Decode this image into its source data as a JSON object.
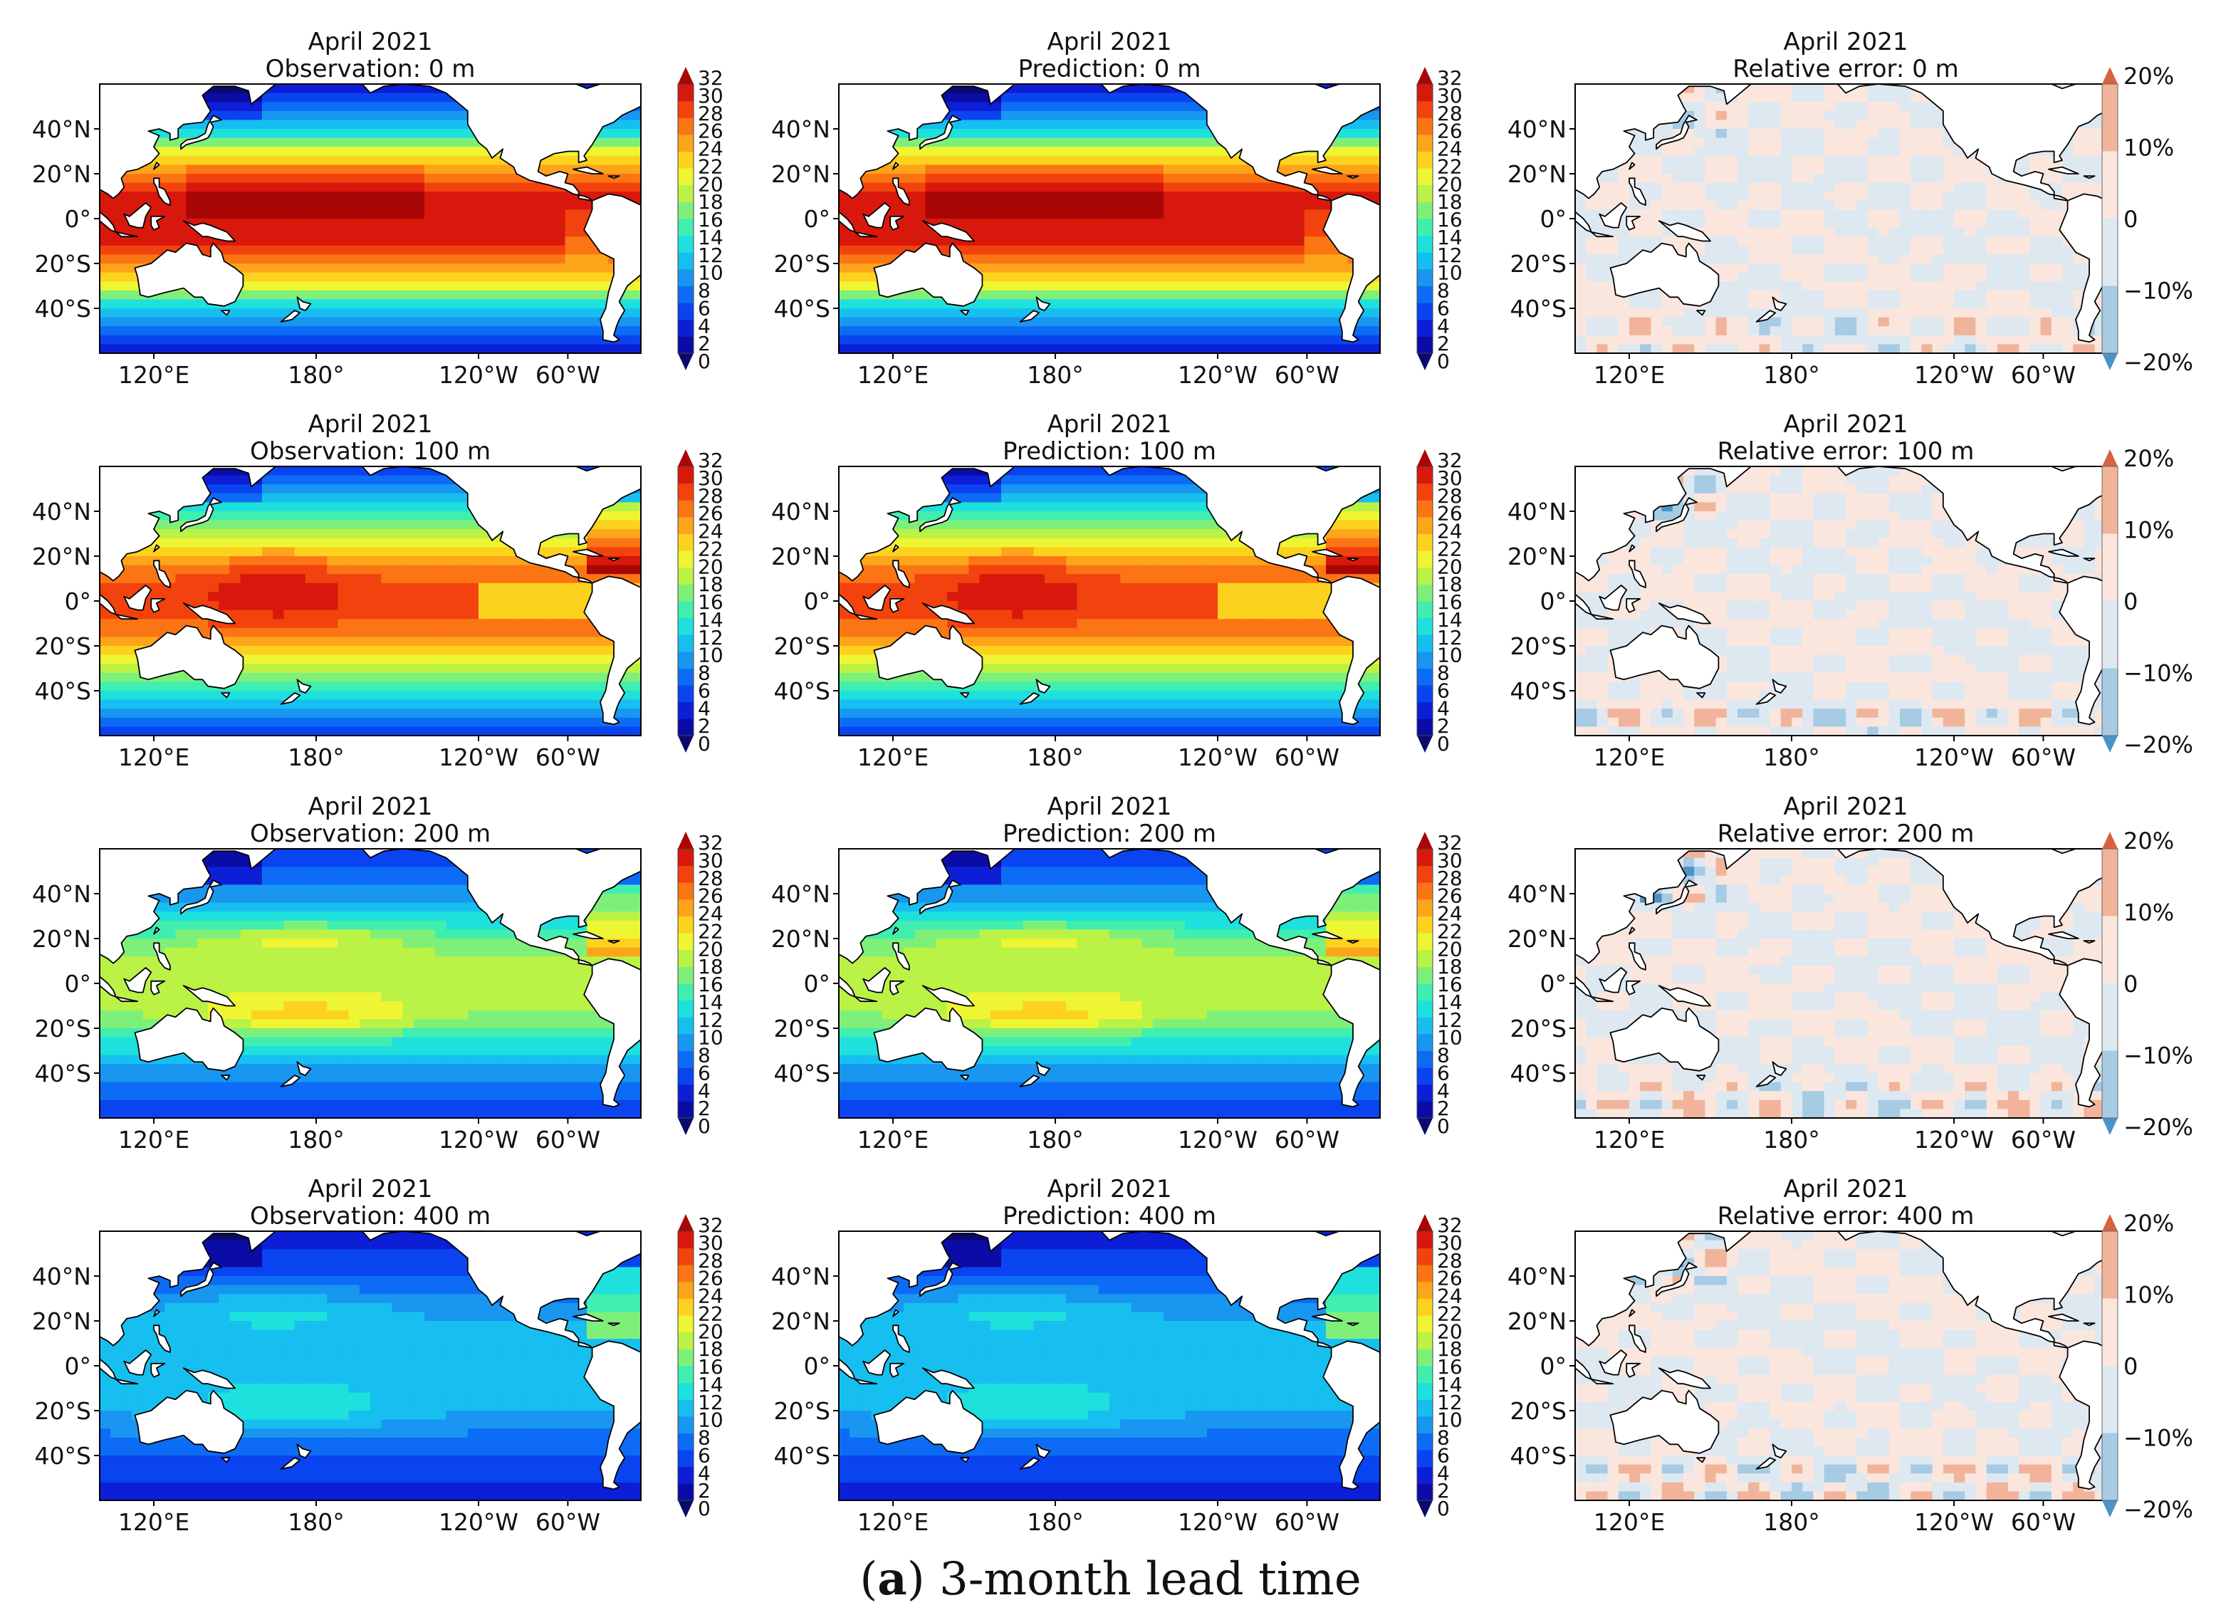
{
  "figure": {
    "caption_label": "a",
    "caption_text": "3-month lead time",
    "colors": {
      "temperature": [
        "#0a0a6e",
        "#0b0ba5",
        "#0c1fd6",
        "#0a44f0",
        "#0d6cf5",
        "#1896f0",
        "#16bff0",
        "#1ee0dd",
        "#40eeaf",
        "#7ef07a",
        "#baf246",
        "#eef532",
        "#fdd21e",
        "#fca51a",
        "#fc7514",
        "#f2420e",
        "#d8180c",
        "#a90606"
      ],
      "relative_error": [
        "#4a93c7",
        "#a6cbe3",
        "#dde8f1",
        "#fbe6de",
        "#f1b49a",
        "#d8613e"
      ],
      "land": "#ffffff",
      "coastline": "#000000"
    },
    "x_ticks": [
      "120°E",
      "180°",
      "120°W",
      "60°W"
    ],
    "y_ticks": [
      "40°N",
      "20°N",
      "0°",
      "20°S",
      "40°S"
    ],
    "temperature_colorbar_ticks": [
      "32",
      "30",
      "28",
      "26",
      "24",
      "22",
      "20",
      "18",
      "16",
      "14",
      "12",
      "10",
      "8",
      "6",
      "4",
      "2",
      "0"
    ],
    "error_colorbar_ticks": [
      "20%",
      "10%",
      "0",
      "−10%",
      "−20%"
    ]
  },
  "chart_data": [
    {
      "type": "heatmap",
      "title": "April 2021",
      "subtitle": "Observation: 0 m",
      "variable": "temperature",
      "depth_m": 0,
      "xlim_lon": [
        100,
        300
      ],
      "ylim_lat": [
        -60,
        60
      ],
      "colorbar_range": [
        0,
        32
      ]
    },
    {
      "type": "heatmap",
      "title": "April 2021",
      "subtitle": "Prediction: 0 m",
      "variable": "temperature",
      "depth_m": 0,
      "xlim_lon": [
        100,
        300
      ],
      "ylim_lat": [
        -60,
        60
      ],
      "colorbar_range": [
        0,
        32
      ]
    },
    {
      "type": "heatmap",
      "title": "April 2021",
      "subtitle": "Relative error: 0 m",
      "variable": "relative_error",
      "depth_m": 0,
      "xlim_lon": [
        100,
        300
      ],
      "ylim_lat": [
        -60,
        60
      ],
      "colorbar_range": [
        -20,
        20
      ]
    },
    {
      "type": "heatmap",
      "title": "April 2021",
      "subtitle": "Observation: 100 m",
      "variable": "temperature",
      "depth_m": 100,
      "xlim_lon": [
        100,
        300
      ],
      "ylim_lat": [
        -60,
        60
      ],
      "colorbar_range": [
        0,
        32
      ]
    },
    {
      "type": "heatmap",
      "title": "April 2021",
      "subtitle": "Prediction: 100 m",
      "variable": "temperature",
      "depth_m": 100,
      "xlim_lon": [
        100,
        300
      ],
      "ylim_lat": [
        -60,
        60
      ],
      "colorbar_range": [
        0,
        32
      ]
    },
    {
      "type": "heatmap",
      "title": "April 2021",
      "subtitle": "Relative error: 100 m",
      "variable": "relative_error",
      "depth_m": 100,
      "xlim_lon": [
        100,
        300
      ],
      "ylim_lat": [
        -60,
        60
      ],
      "colorbar_range": [
        -20,
        20
      ]
    },
    {
      "type": "heatmap",
      "title": "April 2021",
      "subtitle": "Observation: 200 m",
      "variable": "temperature",
      "depth_m": 200,
      "xlim_lon": [
        100,
        300
      ],
      "ylim_lat": [
        -60,
        60
      ],
      "colorbar_range": [
        0,
        32
      ]
    },
    {
      "type": "heatmap",
      "title": "April 2021",
      "subtitle": "Prediction: 200 m",
      "variable": "temperature",
      "depth_m": 200,
      "xlim_lon": [
        100,
        300
      ],
      "ylim_lat": [
        -60,
        60
      ],
      "colorbar_range": [
        0,
        32
      ]
    },
    {
      "type": "heatmap",
      "title": "April 2021",
      "subtitle": "Relative error: 200 m",
      "variable": "relative_error",
      "depth_m": 200,
      "xlim_lon": [
        100,
        300
      ],
      "ylim_lat": [
        -60,
        60
      ],
      "colorbar_range": [
        -20,
        20
      ]
    },
    {
      "type": "heatmap",
      "title": "April 2021",
      "subtitle": "Observation: 400 m",
      "variable": "temperature",
      "depth_m": 400,
      "xlim_lon": [
        100,
        300
      ],
      "ylim_lat": [
        -60,
        60
      ],
      "colorbar_range": [
        0,
        32
      ]
    },
    {
      "type": "heatmap",
      "title": "April 2021",
      "subtitle": "Prediction: 400 m",
      "variable": "temperature",
      "depth_m": 400,
      "xlim_lon": [
        100,
        300
      ],
      "ylim_lat": [
        -60,
        60
      ],
      "colorbar_range": [
        0,
        32
      ]
    },
    {
      "type": "heatmap",
      "title": "April 2021",
      "subtitle": "Relative error: 400 m",
      "variable": "relative_error",
      "depth_m": 400,
      "xlim_lon": [
        100,
        300
      ],
      "ylim_lat": [
        -60,
        60
      ],
      "colorbar_range": [
        -20,
        20
      ]
    }
  ]
}
